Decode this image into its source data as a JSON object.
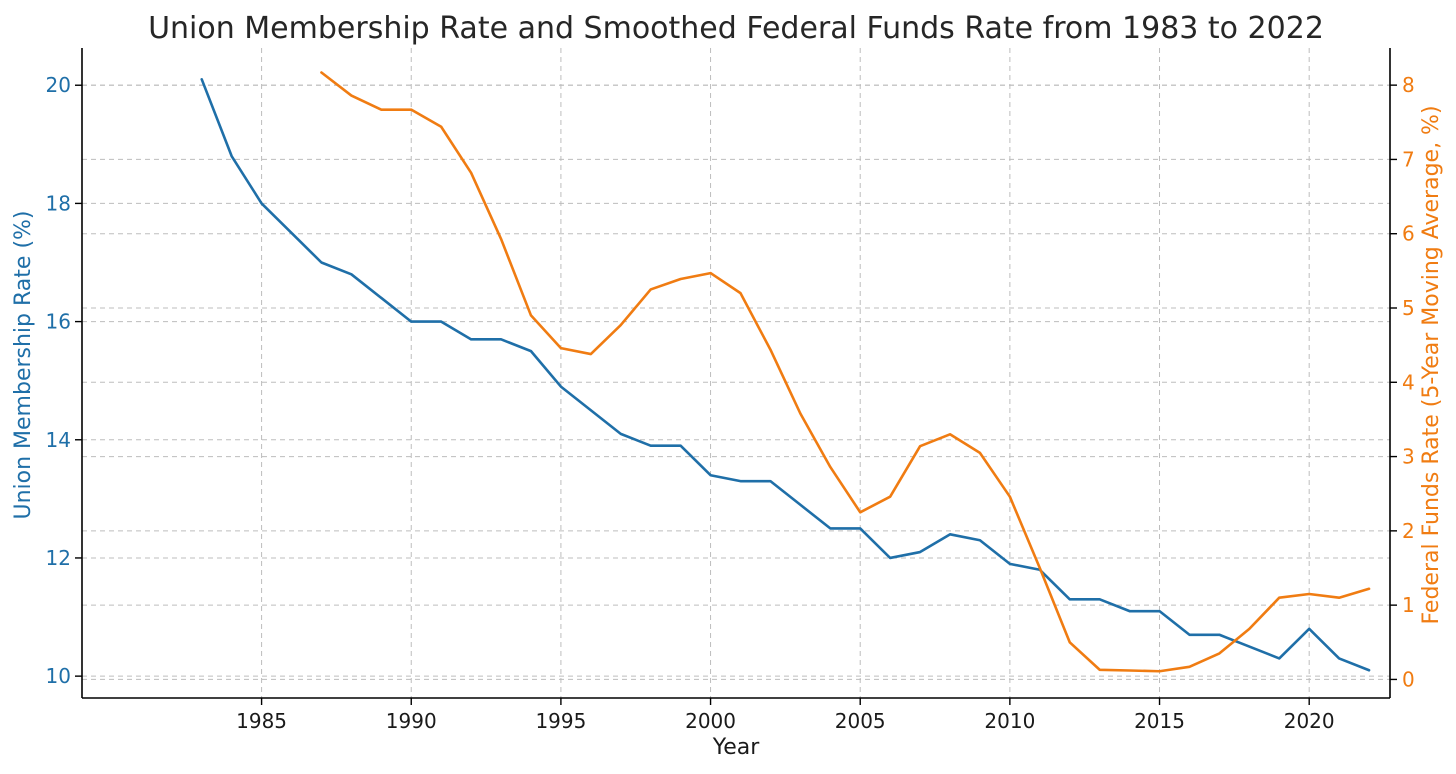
{
  "chart_data": {
    "type": "line",
    "title": "Union Membership Rate and Smoothed Federal Funds Rate from 1983 to 2022",
    "xlabel": "Year",
    "ylabel_left": "Union Membership Rate (%)",
    "ylabel_right": "Federal Funds Rate (5-Year Moving Average, %)",
    "xlim": [
      1979,
      2022.7
    ],
    "ylim_left": [
      9.63,
      20.63
    ],
    "ylim_right": [
      -0.25,
      8.5
    ],
    "xticks": [
      1985,
      1990,
      1995,
      2000,
      2005,
      2010,
      2015,
      2020
    ],
    "yticks_left": [
      10,
      12,
      14,
      16,
      18,
      20
    ],
    "yticks_right": [
      0,
      1,
      2,
      3,
      4,
      5,
      6,
      7,
      8
    ],
    "grid": true,
    "series": [
      {
        "name": "",
        "axis": "left",
        "color": "#1f6fa8",
        "x": [
          1983,
          1984,
          1985,
          1986,
          1987,
          1988,
          1989,
          1990,
          1991,
          1992,
          1993,
          1994,
          1995,
          1996,
          1997,
          1998,
          1999,
          2000,
          2001,
          2002,
          2003,
          2004,
          2005,
          2006,
          2007,
          2008,
          2009,
          2010,
          2011,
          2012,
          2013,
          2014,
          2015,
          2016,
          2017,
          2018,
          2019,
          2020,
          2021,
          2022
        ],
        "values": [
          20.1,
          18.8,
          18.0,
          17.5,
          17.0,
          16.8,
          16.4,
          16.0,
          16.0,
          15.7,
          15.7,
          15.5,
          14.9,
          14.5,
          14.1,
          13.9,
          13.9,
          13.4,
          13.3,
          13.3,
          12.9,
          12.5,
          12.5,
          12.0,
          12.1,
          12.4,
          12.3,
          11.9,
          11.8,
          11.3,
          11.3,
          11.1,
          11.1,
          10.7,
          10.7,
          10.5,
          10.3,
          10.8,
          10.3,
          10.1
        ]
      },
      {
        "name": "",
        "axis": "right",
        "color": "#f07c12",
        "x": [
          1987,
          1988,
          1989,
          1990,
          1991,
          1992,
          1993,
          1994,
          1995,
          1996,
          1997,
          1998,
          1999,
          2000,
          2001,
          2002,
          2003,
          2004,
          2005,
          2006,
          2007,
          2008,
          2009,
          2010,
          2011,
          2012,
          2013,
          2014,
          2015,
          2016,
          2017,
          2018,
          2019,
          2020,
          2021,
          2022
        ],
        "values": [
          8.17,
          7.86,
          7.67,
          7.67,
          7.44,
          6.82,
          5.93,
          4.9,
          4.46,
          4.38,
          4.77,
          5.25,
          5.39,
          5.47,
          5.2,
          4.44,
          3.58,
          2.86,
          2.25,
          2.46,
          3.14,
          3.3,
          3.05,
          2.46,
          1.5,
          0.5,
          0.13,
          0.12,
          0.11,
          0.17,
          0.35,
          0.68,
          1.1,
          1.15,
          1.1,
          1.22
        ]
      }
    ]
  }
}
